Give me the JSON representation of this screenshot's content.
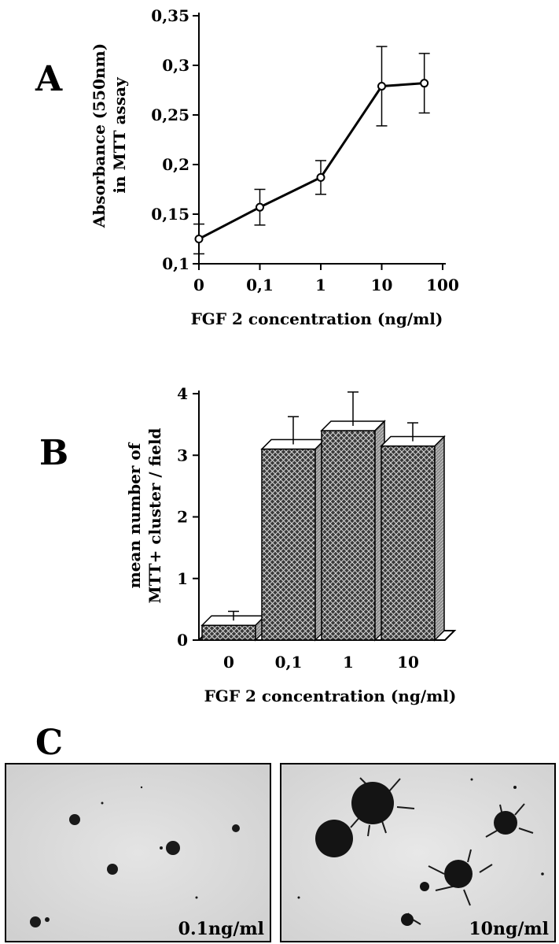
{
  "panels": {
    "a": {
      "letter": "A"
    },
    "b": {
      "letter": "B"
    },
    "c": {
      "letter": "C"
    }
  },
  "chart_data": [
    {
      "type": "line",
      "panel": "A",
      "xlabel": "FGF 2 concentration (ng/ml)",
      "ylabel": "Absorbance (550nm) in MTT assay",
      "ylabel_lines": [
        "Absorbance (550nm)",
        "in MTT assay"
      ],
      "x_tick_labels": [
        "0",
        "0,1",
        "1",
        "10",
        "100"
      ],
      "y_tick_labels": [
        "0,1",
        "0,15",
        "0,2",
        "0,25",
        "0,3",
        "0,35"
      ],
      "y_ticks": [
        0.1,
        0.15,
        0.2,
        0.25,
        0.3,
        0.35
      ],
      "ylim": [
        0.1,
        0.35
      ],
      "x_scale": "log (0 shown at left end)",
      "grid": false,
      "points": [
        {
          "x": 0,
          "y": 0.125,
          "err": 0.015
        },
        {
          "x": 0.1,
          "y": 0.157,
          "err": 0.018
        },
        {
          "x": 1,
          "y": 0.187,
          "err": 0.017
        },
        {
          "x": 10,
          "y": 0.279,
          "err": 0.04
        },
        {
          "x": 50,
          "y": 0.282,
          "err": 0.03
        }
      ]
    },
    {
      "type": "bar",
      "panel": "B",
      "xlabel": "FGF 2 concentration (ng/ml)",
      "ylabel": "mean number of MTT+ cluster / field",
      "ylabel_lines": [
        "mean number of",
        "MTT+ cluster / field"
      ],
      "categories": [
        "0",
        "0,1",
        "1",
        "10"
      ],
      "values": [
        0.24,
        3.1,
        3.4,
        3.15
      ],
      "errors": [
        0.15,
        0.45,
        0.55,
        0.3
      ],
      "y_tick_labels": [
        "0",
        "1",
        "2",
        "3",
        "4"
      ],
      "y_ticks": [
        0,
        1,
        2,
        3,
        4
      ],
      "ylim": [
        0,
        4
      ],
      "grid": false
    }
  ],
  "photos": [
    {
      "label": "0.1ng/ml"
    },
    {
      "label": "10ng/ml"
    }
  ]
}
